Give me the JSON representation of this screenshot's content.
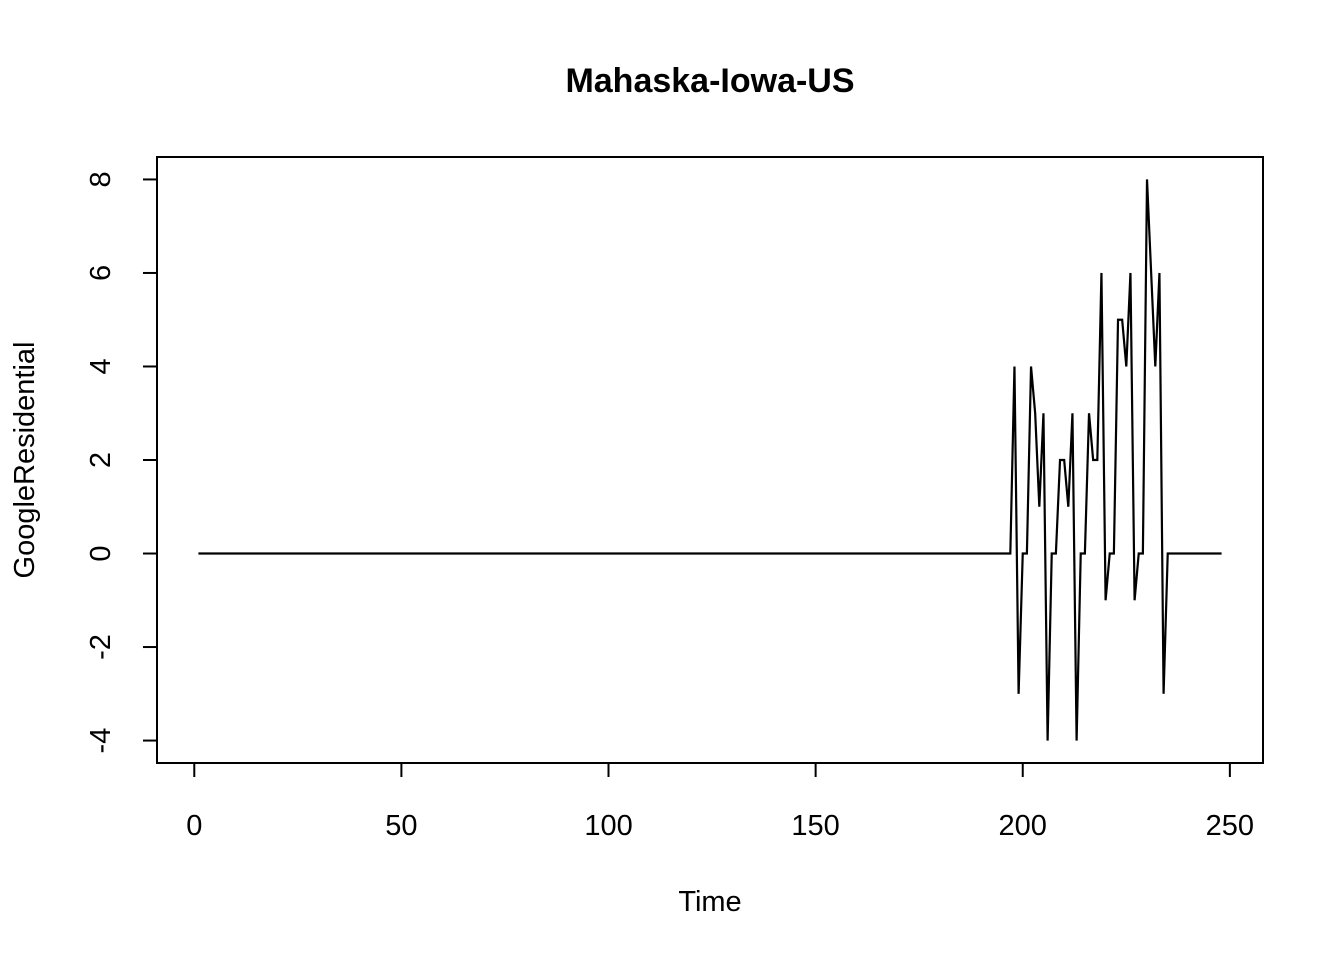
{
  "chart_data": {
    "type": "line",
    "title": "Mahaska-Iowa-US",
    "xlabel": "Time",
    "ylabel": "GoogleResidential",
    "xlim": [
      -9,
      258
    ],
    "ylim": [
      -4.48,
      8.48
    ],
    "x_ticks": [
      0,
      50,
      100,
      150,
      200,
      250
    ],
    "y_ticks": [
      -4,
      -2,
      0,
      2,
      4,
      6,
      8
    ],
    "grid": false,
    "legend": "none",
    "series": [
      {
        "x_start": 1,
        "values": [
          0,
          0,
          0,
          0,
          0,
          0,
          0,
          0,
          0,
          0,
          0,
          0,
          0,
          0,
          0,
          0,
          0,
          0,
          0,
          0,
          0,
          0,
          0,
          0,
          0,
          0,
          0,
          0,
          0,
          0,
          0,
          0,
          0,
          0,
          0,
          0,
          0,
          0,
          0,
          0,
          0,
          0,
          0,
          0,
          0,
          0,
          0,
          0,
          0,
          0,
          0,
          0,
          0,
          0,
          0,
          0,
          0,
          0,
          0,
          0,
          0,
          0,
          0,
          0,
          0,
          0,
          0,
          0,
          0,
          0,
          0,
          0,
          0,
          0,
          0,
          0,
          0,
          0,
          0,
          0,
          0,
          0,
          0,
          0,
          0,
          0,
          0,
          0,
          0,
          0,
          0,
          0,
          0,
          0,
          0,
          0,
          0,
          0,
          0,
          0,
          0,
          0,
          0,
          0,
          0,
          0,
          0,
          0,
          0,
          0,
          0,
          0,
          0,
          0,
          0,
          0,
          0,
          0,
          0,
          0,
          0,
          0,
          0,
          0,
          0,
          0,
          0,
          0,
          0,
          0,
          0,
          0,
          0,
          0,
          0,
          0,
          0,
          0,
          0,
          0,
          0,
          0,
          0,
          0,
          0,
          0,
          0,
          0,
          0,
          0,
          0,
          0,
          0,
          0,
          0,
          0,
          0,
          0,
          0,
          0,
          0,
          0,
          0,
          0,
          0,
          0,
          0,
          0,
          0,
          0,
          0,
          0,
          0,
          0,
          0,
          0,
          0,
          0,
          0,
          0,
          0,
          0,
          0,
          0,
          0,
          0,
          0,
          0,
          0,
          0,
          0,
          0,
          0,
          0,
          0,
          0,
          0,
          4,
          -3,
          0,
          0,
          4,
          3,
          1,
          3,
          -4,
          0,
          0,
          2,
          2,
          1,
          3,
          -4,
          0,
          0,
          3,
          2,
          2,
          6,
          -1,
          0,
          0,
          5,
          5,
          4,
          6,
          -1,
          0,
          0,
          8,
          6,
          4,
          6,
          -3,
          0,
          0,
          0,
          0,
          0,
          0,
          0,
          0,
          0,
          0,
          0,
          0,
          0,
          0
        ]
      }
    ]
  }
}
